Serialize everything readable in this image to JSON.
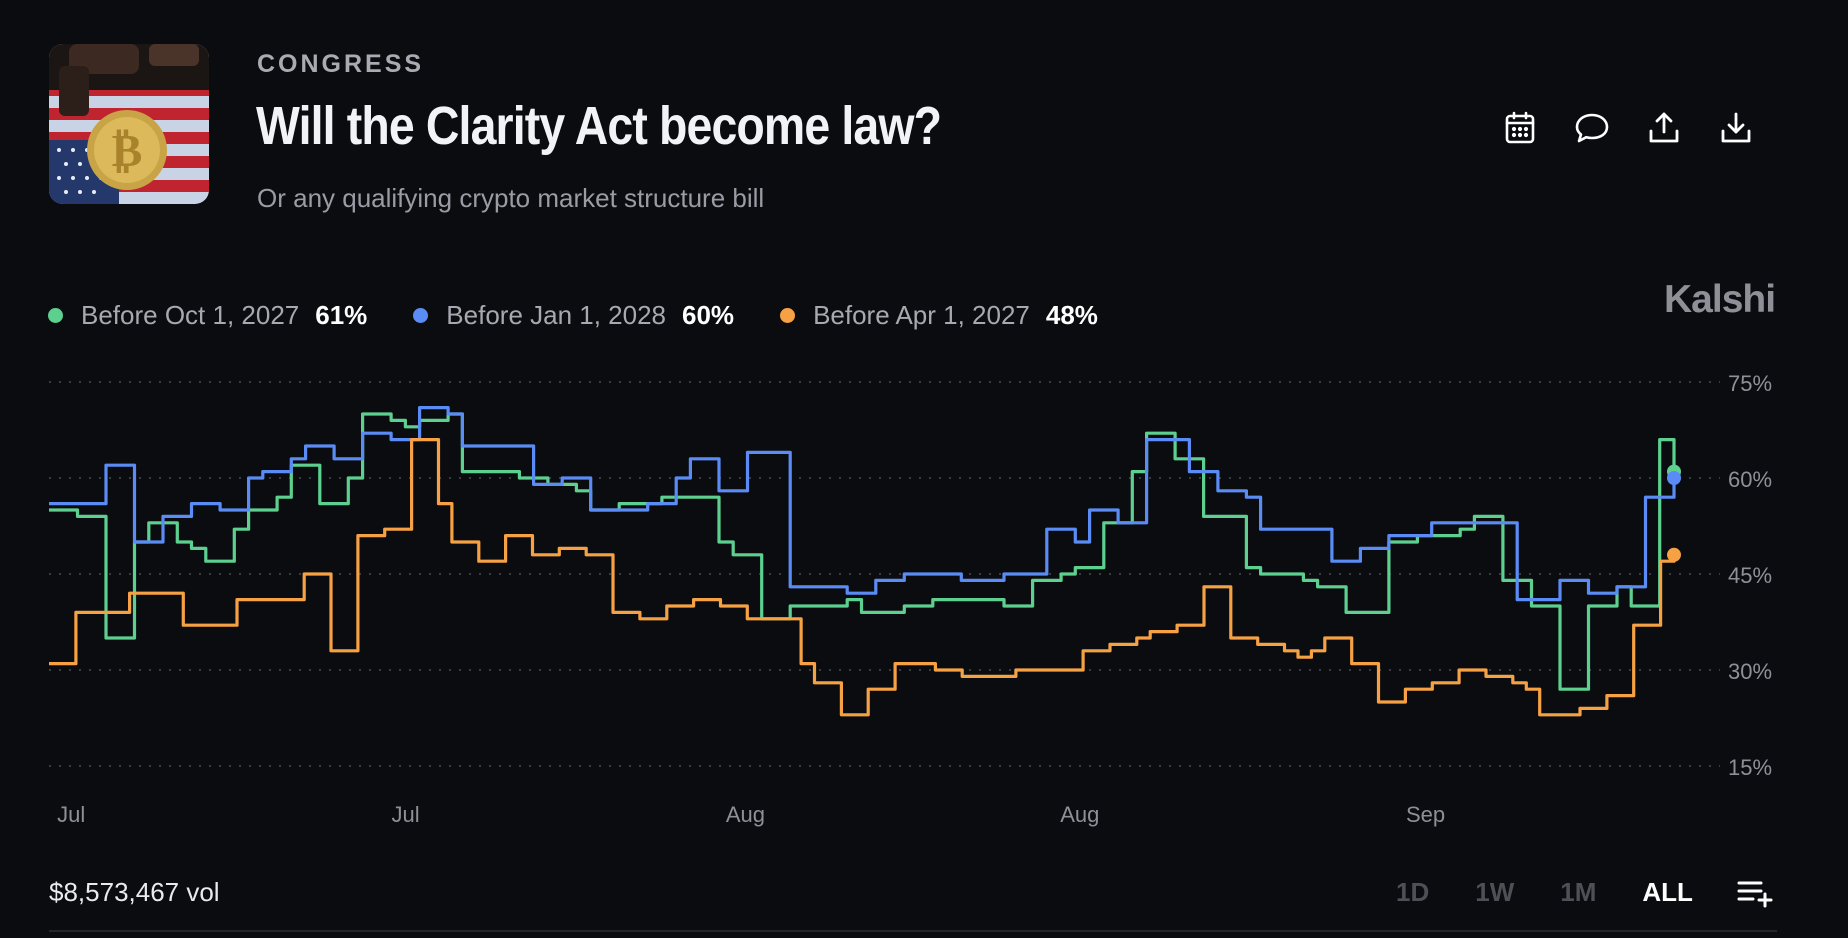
{
  "market": {
    "category": "CONGRESS",
    "title": "Will the Clarity Act become law?",
    "subtitle": "Or any qualifying crypto market structure bill"
  },
  "toolbar": {
    "icons": [
      "calendar-icon",
      "comment-icon",
      "share-icon",
      "download-icon"
    ]
  },
  "legend": [
    {
      "label": "Before Oct 1, 2027",
      "value": "61%",
      "color": "#5dcf8f"
    },
    {
      "label": "Before Jan 1, 2028",
      "value": "60%",
      "color": "#5b8cf5"
    },
    {
      "label": "Before Apr 1, 2027",
      "value": "48%",
      "color": "#f6a143"
    }
  ],
  "brand": "Kalshi",
  "chart_data": {
    "type": "line",
    "ylim": [
      15,
      75
    ],
    "y_ticks": [
      "75%",
      "60%",
      "45%",
      "30%",
      "15%"
    ],
    "x_tick_labels": [
      "Jul",
      "Jul",
      "Aug",
      "Aug",
      "Sep"
    ],
    "grid": true,
    "series": [
      {
        "name": "Before Oct 1, 2027",
        "color": "#5dcf8f",
        "values": [
          55,
          55,
          54,
          54,
          35,
          35,
          50,
          53,
          53,
          50,
          49,
          47,
          47,
          52,
          55,
          55,
          57,
          62,
          62,
          56,
          56,
          60,
          70,
          70,
          69,
          68,
          69,
          69,
          70,
          61,
          61,
          61,
          61,
          60,
          60,
          59,
          59,
          58,
          55,
          55,
          56,
          56,
          56,
          57,
          57,
          57,
          57,
          50,
          48,
          48,
          38,
          38,
          40,
          40,
          40,
          40,
          41,
          39,
          39,
          39,
          40,
          40,
          41,
          41,
          41,
          41,
          41,
          40,
          40,
          44,
          44,
          45,
          46,
          46,
          53,
          53,
          61,
          67,
          67,
          63,
          63,
          54,
          54,
          54,
          46,
          45,
          45,
          45,
          44,
          43,
          43,
          39,
          39,
          39,
          50,
          50,
          51,
          51,
          51,
          52,
          54,
          54,
          44,
          44,
          40,
          40,
          27,
          27,
          40,
          40,
          43,
          40,
          40,
          66,
          61
        ]
      },
      {
        "name": "Before Jan 1, 2028",
        "color": "#5b8cf5",
        "values": [
          56,
          56,
          56,
          56,
          62,
          62,
          50,
          50,
          54,
          54,
          56,
          56,
          55,
          55,
          60,
          61,
          61,
          63,
          65,
          65,
          63,
          63,
          67,
          67,
          66,
          66,
          71,
          71,
          70,
          65,
          65,
          65,
          65,
          65,
          59,
          59,
          60,
          60,
          55,
          55,
          55,
          55,
          56,
          56,
          60,
          63,
          63,
          58,
          58,
          64,
          64,
          64,
          43,
          43,
          43,
          43,
          42,
          42,
          44,
          44,
          45,
          45,
          45,
          45,
          44,
          44,
          44,
          45,
          45,
          45,
          52,
          52,
          50,
          55,
          55,
          53,
          53,
          66,
          66,
          66,
          61,
          61,
          58,
          58,
          57,
          52,
          52,
          52,
          52,
          52,
          47,
          47,
          49,
          49,
          51,
          51,
          51,
          53,
          53,
          53,
          53,
          53,
          53,
          41,
          41,
          41,
          44,
          44,
          42,
          42,
          43,
          43,
          57,
          57,
          60
        ]
      },
      {
        "name": "Before Apr 1, 2027",
        "color": "#f6a143",
        "values": [
          31,
          31,
          39,
          39,
          39,
          39,
          42,
          42,
          42,
          42,
          37,
          37,
          37,
          37,
          41,
          41,
          41,
          41,
          41,
          45,
          45,
          33,
          33,
          51,
          51,
          52,
          52,
          66,
          66,
          56,
          50,
          50,
          47,
          47,
          51,
          51,
          48,
          48,
          49,
          49,
          48,
          48,
          39,
          39,
          38,
          38,
          40,
          40,
          41,
          41,
          40,
          40,
          38,
          38,
          38,
          38,
          31,
          28,
          28,
          23,
          23,
          27,
          27,
          31,
          31,
          31,
          30,
          30,
          29,
          29,
          29,
          29,
          30,
          30,
          30,
          30,
          30,
          33,
          33,
          34,
          34,
          35,
          36,
          36,
          37,
          37,
          43,
          43,
          35,
          35,
          34,
          34,
          33,
          32,
          33,
          35,
          35,
          31,
          31,
          25,
          25,
          27,
          27,
          28,
          28,
          30,
          30,
          29,
          29,
          28,
          27,
          23,
          23,
          23,
          24,
          24,
          26,
          26,
          37,
          37,
          47,
          48
        ]
      }
    ]
  },
  "footer": {
    "volume": "$8,573,467 vol",
    "ranges": [
      "1D",
      "1W",
      "1M",
      "ALL"
    ],
    "active_range": "ALL"
  }
}
